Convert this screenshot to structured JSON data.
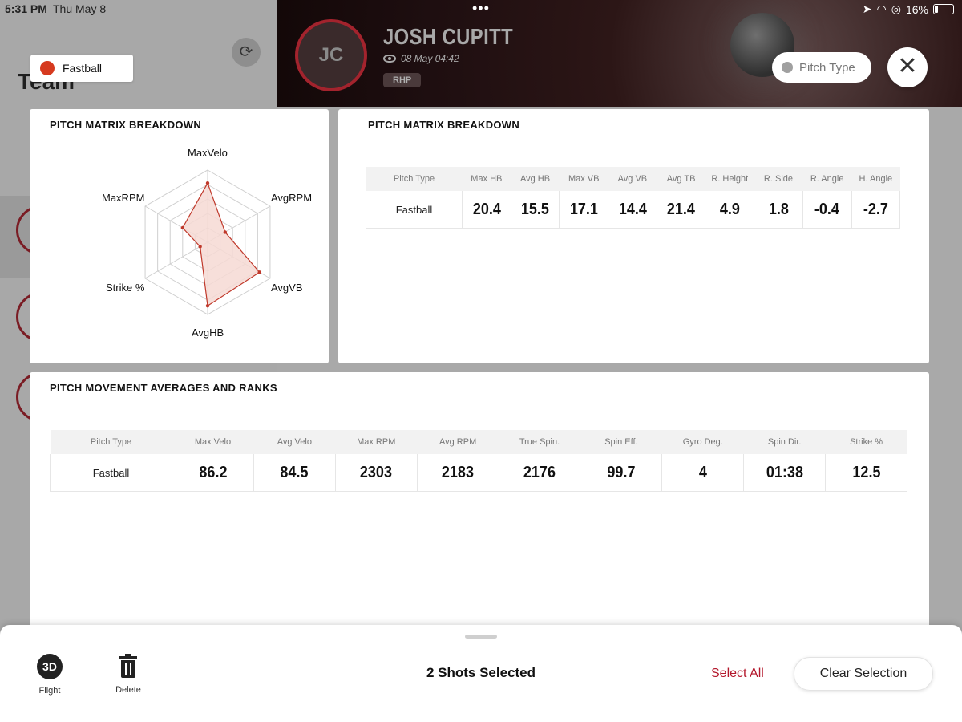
{
  "status_bar": {
    "time": "5:31 PM",
    "date": "Thu May 8",
    "battery": "16%"
  },
  "background": {
    "team_title": "Team"
  },
  "header": {
    "avatar_initials": "JC",
    "player_name": "JOSH CUPITT",
    "session_datetime": "08 May 04:42",
    "badge": "RHP",
    "pitch_type_button": "Pitch Type",
    "close_icon": "close-icon"
  },
  "filter_chip": {
    "label": "Fastball",
    "color": "#d63a1f"
  },
  "radar_panel": {
    "title": "PITCH MATRIX BREAKDOWN",
    "axes": [
      "MaxVelo",
      "AvgRPM",
      "AvgVB",
      "AvgHB",
      "Strike %",
      "MaxRPM"
    ],
    "fill_color": "#f6d9d4",
    "stroke_color": "#c0392b"
  },
  "chart_data": {
    "type": "radar",
    "axes": [
      "MaxVelo",
      "AvgRPM",
      "AvgVB",
      "AvgHB",
      "Strike %",
      "MaxRPM"
    ],
    "values": [
      0.82,
      0.28,
      0.83,
      0.88,
      0.12,
      0.4
    ],
    "range": [
      0,
      1
    ],
    "rings": 5
  },
  "matrix_panel": {
    "title": "PITCH MATRIX BREAKDOWN",
    "columns": [
      "Pitch Type",
      "Max HB",
      "Avg HB",
      "Max VB",
      "Avg VB",
      "Avg TB",
      "R. Height",
      "R. Side",
      "R. Angle",
      "H. Angle"
    ],
    "rows": [
      [
        "Fastball",
        "20.4",
        "15.5",
        "17.1",
        "14.4",
        "21.4",
        "4.9",
        "1.8",
        "-0.4",
        "-2.7"
      ]
    ]
  },
  "movement_panel": {
    "title": "PITCH MOVEMENT AVERAGES AND RANKS",
    "columns": [
      "Pitch Type",
      "Max Velo",
      "Avg Velo",
      "Max RPM",
      "Avg RPM",
      "True Spin.",
      "Spin Eff.",
      "Gyro Deg.",
      "Spin Dir.",
      "Strike %"
    ],
    "rows": [
      [
        "Fastball",
        "86.2",
        "84.5",
        "2303",
        "2183",
        "2176",
        "99.7",
        "4",
        "01:38",
        "12.5"
      ]
    ]
  },
  "bottom_bar": {
    "flight_icon_text": "3D",
    "flight_label": "Flight",
    "delete_label": "Delete",
    "selection_text": "2 Shots Selected",
    "select_all": "Select All",
    "clear_selection": "Clear Selection"
  }
}
